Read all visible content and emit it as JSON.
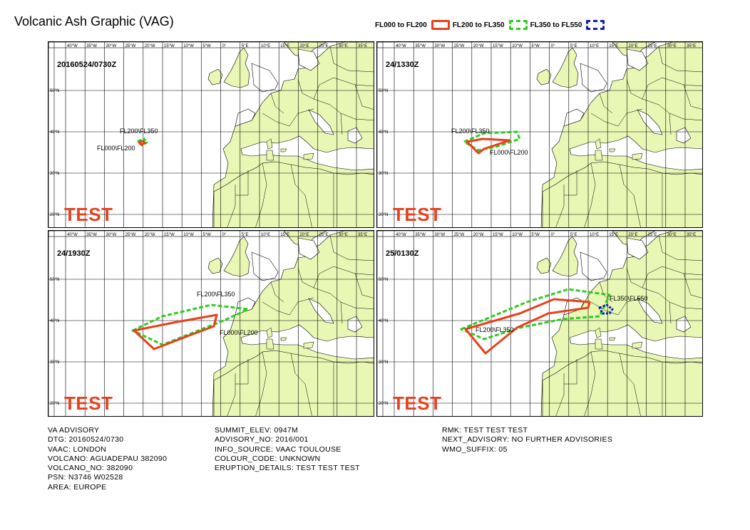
{
  "title": "Volcanic Ash Graphic (VAG)",
  "legend": [
    {
      "label": "FL000 to FL200",
      "color": "#e8401c",
      "style": "solid"
    },
    {
      "label": "FL200 to FL350",
      "color": "#2ecc1f",
      "style": "dashed"
    },
    {
      "label": "FL350 to FL550",
      "color": "#0a1fb0",
      "style": "dashed"
    }
  ],
  "map": {
    "lon_labels": [
      "40°W",
      "35°W",
      "30°W",
      "25°W",
      "20°W",
      "15°W",
      "10°W",
      "5°W",
      "0°",
      "5°E",
      "10°E",
      "15°E",
      "20°E",
      "25°E",
      "30°E",
      "35°E"
    ],
    "lat_labels": [
      "50°N",
      "40°N",
      "30°N",
      "20°N"
    ],
    "land_color": "#e9f7b5",
    "test_label": "TEST"
  },
  "panels": [
    {
      "timestamp": "20160524/0730Z",
      "labels": [
        {
          "text": "FL200\\FL350",
          "color": "#000"
        },
        {
          "text": "FL000\\FL200",
          "color": "#000"
        }
      ]
    },
    {
      "timestamp": "24/1330Z",
      "labels": [
        {
          "text": "FL200\\FL350",
          "color": "#000"
        },
        {
          "text": "FL000\\FL200",
          "color": "#000"
        }
      ]
    },
    {
      "timestamp": "24/1930Z",
      "labels": [
        {
          "text": "FL200\\FL350",
          "color": "#000"
        },
        {
          "text": "FL000\\FL200",
          "color": "#000"
        }
      ]
    },
    {
      "timestamp": "25/0130Z",
      "labels": [
        {
          "text": "FL200\\FL350",
          "color": "#000"
        },
        {
          "text": "FL350\\FL550",
          "color": "#000"
        }
      ]
    }
  ],
  "advisory": {
    "col1": [
      "VA ADVISORY",
      "DTG: 20160524/0730",
      "VAAC: LONDON",
      "VOLCANO: AGUADEPAU 382090",
      "VOLCANO_NO: 382090",
      "PSN: N3746 W02528",
      "AREA: EUROPE"
    ],
    "col2": [
      "SUMMIT_ELEV: 0947M",
      "ADVISORY_NO: 2016/001",
      "INFO_SOURCE: VAAC TOULOUSE",
      "COLOUR_CODE: UNKNOWN",
      "ERUPTION_DETAILS: TEST TEST TEST"
    ],
    "col3": [
      "RMK: TEST TEST TEST",
      "NEXT_ADVISORY: NO FURTHER ADVISORIES",
      "WMO_SUFFIX: 05"
    ]
  }
}
